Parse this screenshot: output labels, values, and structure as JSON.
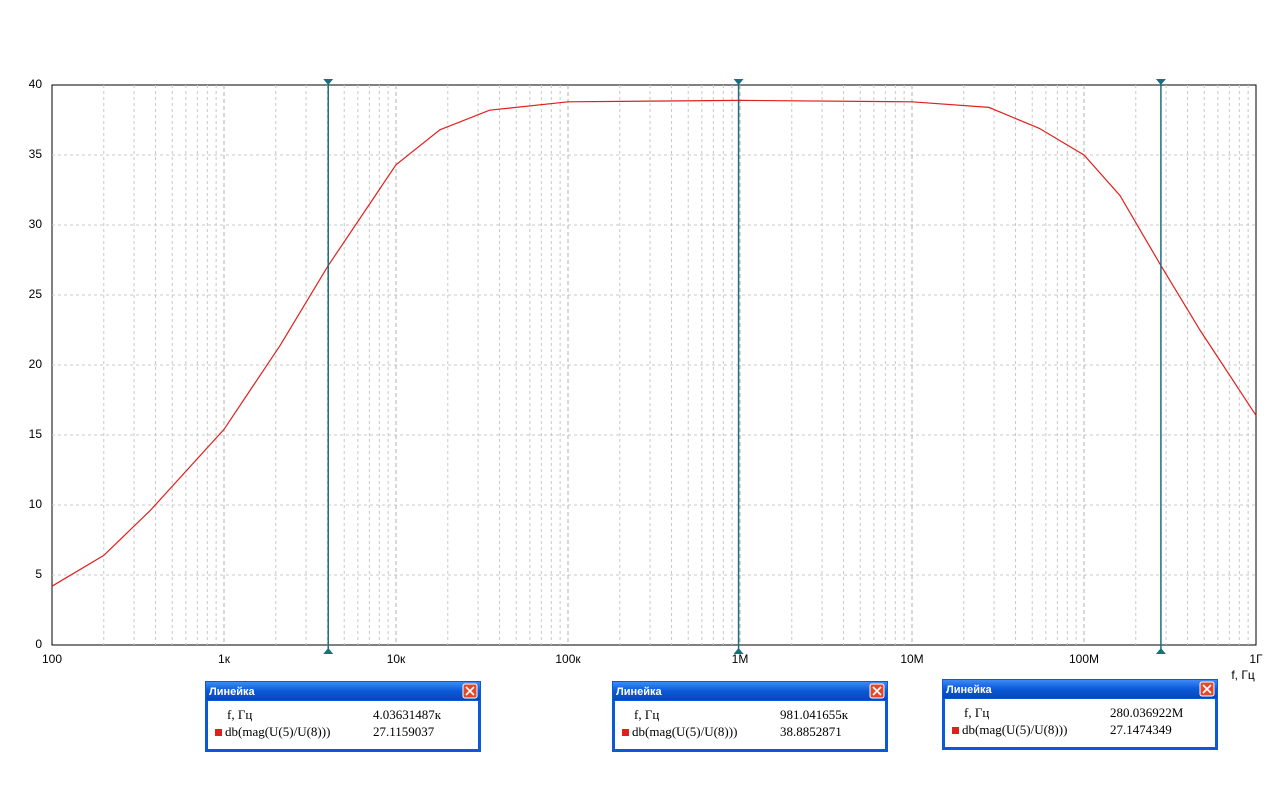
{
  "chart_data": {
    "type": "line",
    "x_label": "f, Гц",
    "xscale": "log",
    "grid": true,
    "xlim": [
      100,
      1000000000
    ],
    "ylim": [
      0,
      40
    ],
    "xticks": [
      100,
      {
        "value": 1000,
        "label": "1к"
      },
      {
        "value": 10000,
        "label": "10к"
      },
      {
        "value": 100000,
        "label": "100к"
      },
      {
        "value": 1000000,
        "label": "1М"
      },
      {
        "value": 10000000,
        "label": "10М"
      },
      {
        "value": 100000000,
        "label": "100М"
      },
      {
        "value": 1000000000,
        "label": "1Г"
      }
    ],
    "yticks": [
      0,
      5,
      10,
      15,
      20,
      25,
      30,
      35,
      40
    ],
    "x": [
      100,
      200,
      372,
      1000,
      2120,
      4036,
      10000,
      18000,
      35000,
      100000,
      1000000,
      10000000,
      28000000,
      55000000,
      100000000,
      162000000,
      280000000,
      472000000,
      1000000000
    ],
    "series": [
      {
        "name": "db(mag(U(5)/U(8)))",
        "color": "#e0201c",
        "values": [
          4.2,
          6.4,
          9.6,
          15.4,
          21.4,
          27.1,
          34.3,
          36.8,
          38.2,
          38.8,
          38.9,
          38.8,
          38.4,
          36.9,
          35,
          32.1,
          27.1,
          22.5,
          16.4
        ]
      }
    ],
    "cursor_title": "Линейка",
    "cursor_color": "#1b6e80",
    "cursors": [
      {
        "x": 4036.31487,
        "x_label": "4.03631487к",
        "y": 27.1159037
      },
      {
        "x": 981041.655,
        "x_label": "981.041655к",
        "y": 38.8852871
      },
      {
        "x": 280036922,
        "x_label": "280.036922М",
        "y": 27.1474349
      }
    ]
  }
}
